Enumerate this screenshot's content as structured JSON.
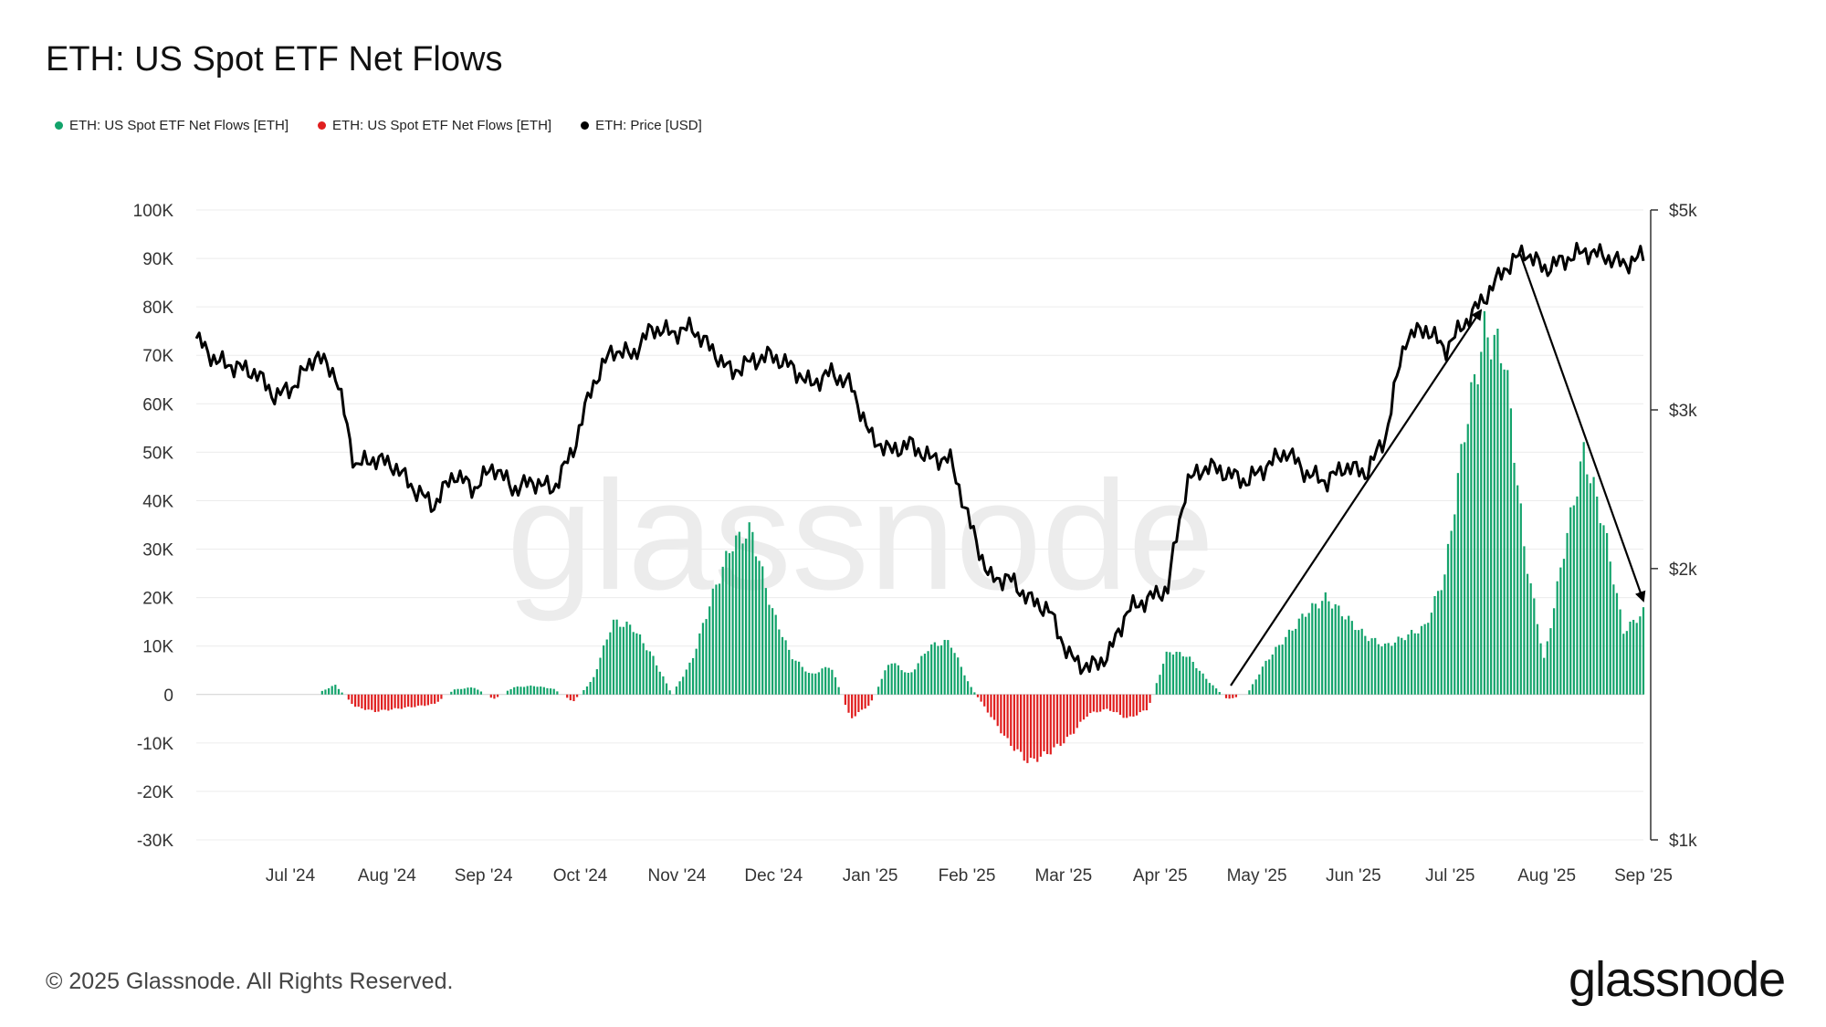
{
  "title": "ETH: US Spot ETF Net Flows",
  "legend": [
    {
      "label": "ETH: US Spot ETF Net Flows [ETH]",
      "color": "#12a36b"
    },
    {
      "label": "ETH: US Spot ETF Net Flows [ETH]",
      "color": "#e01f1f"
    },
    {
      "label": "ETH: Price [USD]",
      "color": "#000000"
    }
  ],
  "footer": {
    "copyright": "© 2025 Glassnode. All Rights Reserved.",
    "brand": "glassnode"
  },
  "watermark": "glassnode",
  "chart_data": {
    "type": "bar+line",
    "x_labels": [
      "Jul '24",
      "Aug '24",
      "Sep '24",
      "Oct '24",
      "Nov '24",
      "Dec '24",
      "Jan '25",
      "Feb '25",
      "Mar '25",
      "Apr '25",
      "May '25",
      "Jun '25",
      "Jul '25",
      "Aug '25",
      "Sep '25"
    ],
    "left_axis": {
      "ticks": [
        "100K",
        "90K",
        "80K",
        "70K",
        "60K",
        "50K",
        "40K",
        "30K",
        "20K",
        "10K",
        "0",
        "-10K",
        "-20K",
        "-30K"
      ],
      "range": [
        -30000,
        100000
      ]
    },
    "right_axis": {
      "ticks": [
        "$5k",
        "$3k",
        "$2k",
        "$1k"
      ],
      "scale": "log",
      "range": [
        1000,
        5000
      ]
    },
    "colors": {
      "inflow": "#12a36b",
      "outflow": "#e01f1f",
      "price": "#000000"
    },
    "flows_eth_weekly_approx": [
      [
        0,
        0
      ],
      [
        1,
        0
      ],
      [
        2,
        0
      ],
      [
        3,
        0
      ],
      [
        4,
        0
      ],
      [
        5,
        0
      ],
      [
        6,
        0
      ],
      [
        7,
        2000
      ],
      [
        8,
        -2500
      ],
      [
        9,
        -3500
      ],
      [
        10,
        -3000
      ],
      [
        11,
        -2500
      ],
      [
        12,
        -2000
      ],
      [
        13,
        1000
      ],
      [
        14,
        1500
      ],
      [
        15,
        -1000
      ],
      [
        16,
        1500
      ],
      [
        17,
        1800
      ],
      [
        18,
        1200
      ],
      [
        19,
        -1500
      ],
      [
        20,
        3000
      ],
      [
        21,
        15000
      ],
      [
        22,
        14000
      ],
      [
        23,
        8000
      ],
      [
        24,
        0
      ],
      [
        25,
        7000
      ],
      [
        26,
        20000
      ],
      [
        27,
        31000
      ],
      [
        28,
        34000
      ],
      [
        29,
        18000
      ],
      [
        30,
        8000
      ],
      [
        31,
        4000
      ],
      [
        32,
        6000
      ],
      [
        33,
        -5000
      ],
      [
        34,
        -2000
      ],
      [
        35,
        7000
      ],
      [
        36,
        4000
      ],
      [
        37,
        10000
      ],
      [
        38,
        11000
      ],
      [
        39,
        2000
      ],
      [
        40,
        -4000
      ],
      [
        41,
        -10000
      ],
      [
        42,
        -14000
      ],
      [
        43,
        -12000
      ],
      [
        44,
        -9000
      ],
      [
        45,
        -4000
      ],
      [
        46,
        -3000
      ],
      [
        47,
        -5000
      ],
      [
        48,
        -3000
      ],
      [
        49,
        9000
      ],
      [
        50,
        8000
      ],
      [
        51,
        3000
      ],
      [
        52,
        -1000
      ],
      [
        53,
        0
      ],
      [
        54,
        7000
      ],
      [
        55,
        12000
      ],
      [
        56,
        17000
      ],
      [
        57,
        20000
      ],
      [
        58,
        16000
      ],
      [
        59,
        12000
      ],
      [
        60,
        10000
      ],
      [
        61,
        12000
      ],
      [
        62,
        14000
      ],
      [
        63,
        25000
      ],
      [
        64,
        55000
      ],
      [
        65,
        75000
      ],
      [
        66,
        70000
      ],
      [
        67,
        30000
      ],
      [
        68,
        7000
      ],
      [
        69,
        30000
      ],
      [
        70,
        50000
      ],
      [
        71,
        35000
      ],
      [
        72,
        13000
      ],
      [
        73,
        17000
      ]
    ],
    "price_usd_weekly_approx": [
      [
        0,
        3600
      ],
      [
        1,
        3400
      ],
      [
        2,
        3350
      ],
      [
        3,
        3300
      ],
      [
        4,
        3100
      ],
      [
        5,
        3200
      ],
      [
        6,
        3450
      ],
      [
        7,
        3300
      ],
      [
        8,
        2600
      ],
      [
        9,
        2650
      ],
      [
        10,
        2600
      ],
      [
        11,
        2450
      ],
      [
        12,
        2350
      ],
      [
        13,
        2550
      ],
      [
        14,
        2450
      ],
      [
        15,
        2600
      ],
      [
        16,
        2450
      ],
      [
        17,
        2500
      ],
      [
        18,
        2450
      ],
      [
        19,
        2700
      ],
      [
        20,
        3200
      ],
      [
        21,
        3500
      ],
      [
        22,
        3450
      ],
      [
        23,
        3700
      ],
      [
        24,
        3650
      ],
      [
        25,
        3700
      ],
      [
        26,
        3500
      ],
      [
        27,
        3300
      ],
      [
        28,
        3400
      ],
      [
        29,
        3450
      ],
      [
        30,
        3350
      ],
      [
        31,
        3200
      ],
      [
        32,
        3300
      ],
      [
        33,
        3200
      ],
      [
        34,
        2800
      ],
      [
        35,
        2700
      ],
      [
        36,
        2750
      ],
      [
        37,
        2650
      ],
      [
        38,
        2650
      ],
      [
        39,
        2250
      ],
      [
        40,
        1950
      ],
      [
        41,
        1950
      ],
      [
        42,
        1850
      ],
      [
        43,
        1800
      ],
      [
        44,
        1600
      ],
      [
        45,
        1550
      ],
      [
        46,
        1600
      ],
      [
        47,
        1800
      ],
      [
        48,
        1850
      ],
      [
        49,
        1900
      ],
      [
        50,
        2500
      ],
      [
        51,
        2600
      ],
      [
        52,
        2550
      ],
      [
        53,
        2500
      ],
      [
        54,
        2600
      ],
      [
        55,
        2700
      ],
      [
        56,
        2550
      ],
      [
        57,
        2500
      ],
      [
        58,
        2600
      ],
      [
        59,
        2550
      ],
      [
        60,
        2800
      ],
      [
        61,
        3600
      ],
      [
        62,
        3700
      ],
      [
        63,
        3500
      ],
      [
        64,
        3750
      ],
      [
        65,
        4000
      ],
      [
        66,
        4300
      ],
      [
        67,
        4500
      ],
      [
        68,
        4300
      ],
      [
        69,
        4400
      ],
      [
        70,
        4500
      ],
      [
        71,
        4450
      ],
      [
        72,
        4350
      ],
      [
        73,
        4450
      ]
    ],
    "annotations": [
      {
        "type": "arrow",
        "from": [
          "Apr '25",
          0
        ],
        "to": [
          "Jul '25",
          80000
        ],
        "direction": "up"
      },
      {
        "type": "arrow",
        "from": [
          "Jul '25",
          90000
        ],
        "to": [
          "Sep '25",
          20000
        ],
        "direction": "down"
      }
    ]
  }
}
